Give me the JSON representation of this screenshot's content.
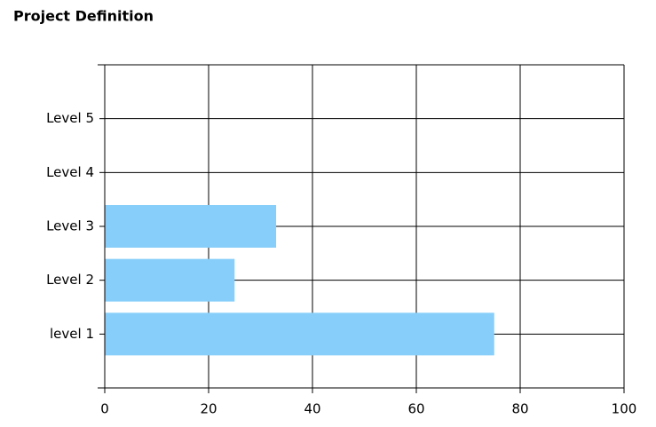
{
  "chart_data": {
    "type": "bar",
    "orientation": "horizontal",
    "title": "Project Definition",
    "categories": [
      "level 1",
      "Level 2",
      "Level 3",
      "Level 4",
      "Level 5"
    ],
    "values": [
      75,
      25,
      33,
      0,
      0
    ],
    "color": "#87cefa",
    "xlim": [
      0,
      100
    ],
    "xticks": [
      0,
      20,
      40,
      60,
      80,
      100
    ],
    "grid": true
  }
}
